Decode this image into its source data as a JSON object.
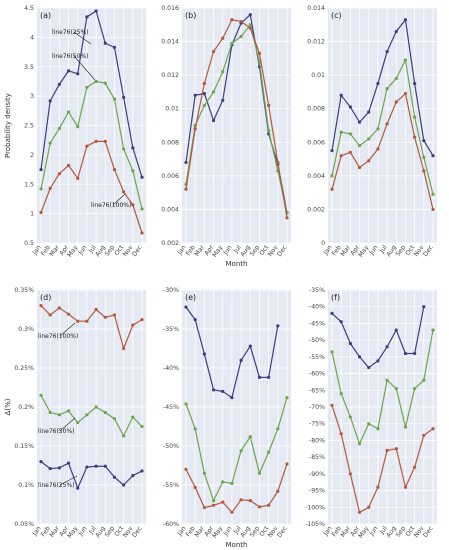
{
  "colors": {
    "line76(25%)": "#3d3f7e",
    "line76(50%)": "#6fa64a",
    "line76(100%)": "#b6583a"
  },
  "chart_data": [
    {
      "type": "line",
      "panel": "(a)",
      "categories": [
        "Jan",
        "Feb",
        "Mar",
        "Apr",
        "May",
        "Jun",
        "Jul",
        "Aug",
        "Sep",
        "Oct",
        "Nov",
        "Dec"
      ],
      "ylabel": "Probability density",
      "xlabel": "",
      "ylim": [
        0.5,
        4.5
      ],
      "yticks": [
        "0.5",
        "1",
        "1.5",
        "2",
        "2.5",
        "3",
        "3.5",
        "4",
        "4.5"
      ],
      "tick_values": [
        0.5,
        1,
        1.5,
        2,
        2.5,
        3,
        3.5,
        4,
        4.5
      ],
      "series": [
        {
          "name": "line76(25%)",
          "values": [
            1.75,
            2.92,
            3.2,
            3.43,
            3.38,
            4.35,
            4.45,
            3.9,
            3.83,
            2.98,
            2.12,
            1.62
          ]
        },
        {
          "name": "line76(50%)",
          "values": [
            1.42,
            2.2,
            2.45,
            2.73,
            2.48,
            3.15,
            3.25,
            3.22,
            2.95,
            2.1,
            1.73,
            1.08
          ]
        },
        {
          "name": "line76(100%)",
          "values": [
            1.02,
            1.43,
            1.68,
            1.82,
            1.6,
            2.15,
            2.23,
            2.23,
            1.75,
            1.37,
            1.15,
            0.67
          ]
        }
      ],
      "annotations": [
        {
          "text": "line76(25%)",
          "series": "line76(25%)"
        },
        {
          "text": "line76(50%)",
          "series": "line76(50%)"
        },
        {
          "text": "line76(100%)",
          "series": "line76(100%)"
        }
      ]
    },
    {
      "type": "line",
      "panel": "(b)",
      "categories": [
        "Jan",
        "Feb",
        "Mar",
        "Apr",
        "May",
        "Jun",
        "Jul",
        "Aug",
        "Sep",
        "Oct",
        "Nov",
        "Dec"
      ],
      "xlabel": "Month",
      "ylabel": "",
      "ylim": [
        0.002,
        0.016
      ],
      "yticks": [
        "0.002",
        "0.004",
        "0.006",
        "0.008",
        "0.01",
        "0.012",
        "0.014",
        "0.016"
      ],
      "tick_values": [
        0.002,
        0.004,
        0.006,
        0.008,
        0.01,
        0.012,
        0.014,
        0.016
      ],
      "series": [
        {
          "name": "line76(25%)",
          "values": [
            0.0068,
            0.0108,
            0.0109,
            0.0093,
            0.0105,
            0.0138,
            0.0151,
            0.0156,
            0.0125,
            0.0085,
            0.0067,
            0.0038
          ]
        },
        {
          "name": "line76(50%)",
          "values": [
            0.0055,
            0.009,
            0.0102,
            0.011,
            0.0122,
            0.0139,
            0.0143,
            0.015,
            0.0128,
            0.0087,
            0.0063,
            0.0038
          ]
        },
        {
          "name": "line76(100%)",
          "values": [
            0.0052,
            0.0088,
            0.0115,
            0.0134,
            0.0142,
            0.0153,
            0.0152,
            0.0148,
            0.0133,
            0.0102,
            0.0068,
            0.0035
          ]
        }
      ]
    },
    {
      "type": "line",
      "panel": "(c)",
      "categories": [
        "Jan",
        "Feb",
        "Mar",
        "Apr",
        "May",
        "Jun",
        "Jul",
        "Aug",
        "Sep",
        "Oct",
        "Nov",
        "Dec"
      ],
      "xlabel": "",
      "ylabel": "",
      "ylim": [
        0.0,
        0.014
      ],
      "yticks": [
        "0",
        "0.002",
        "0.004",
        "0.006",
        "0.008",
        "0.01",
        "0.012",
        "0.014"
      ],
      "tick_values": [
        0,
        0.002,
        0.004,
        0.006,
        0.008,
        0.01,
        0.012,
        0.014
      ],
      "series": [
        {
          "name": "line76(25%)",
          "values": [
            0.0055,
            0.0088,
            0.0081,
            0.0072,
            0.0078,
            0.0095,
            0.0114,
            0.0126,
            0.0133,
            0.0095,
            0.0061,
            0.0052
          ]
        },
        {
          "name": "line76(50%)",
          "values": [
            0.004,
            0.0066,
            0.0065,
            0.0058,
            0.0062,
            0.0068,
            0.0092,
            0.0098,
            0.0109,
            0.0075,
            0.0051,
            0.0029
          ]
        },
        {
          "name": "line76(100%)",
          "values": [
            0.0032,
            0.0052,
            0.0054,
            0.0045,
            0.0049,
            0.0056,
            0.0071,
            0.0084,
            0.0089,
            0.0063,
            0.0043,
            0.002
          ]
        }
      ]
    },
    {
      "type": "line",
      "panel": "(d)",
      "categories": [
        "Jan",
        "Feb",
        "Mar",
        "Apr",
        "May",
        "Jun",
        "Jul",
        "Aug",
        "Sep",
        "Oct",
        "Nov",
        "Dec"
      ],
      "ylabel": "Δ(%)",
      "xlabel": "",
      "ylim": [
        0.05,
        0.35
      ],
      "yticks": [
        "0.05%",
        "0.1%",
        "0.15%",
        "0.2%",
        "0.25%",
        "0.3%",
        "0.35%"
      ],
      "tick_values": [
        0.05,
        0.1,
        0.15,
        0.2,
        0.25,
        0.3,
        0.35
      ],
      "series": [
        {
          "name": "line76(25%)",
          "values": [
            0.13,
            0.121,
            0.122,
            0.128,
            0.096,
            0.123,
            0.124,
            0.124,
            0.11,
            0.1,
            0.112,
            0.118
          ]
        },
        {
          "name": "line76(50%)",
          "values": [
            0.215,
            0.193,
            0.19,
            0.195,
            0.18,
            0.19,
            0.2,
            0.193,
            0.185,
            0.163,
            0.187,
            0.175
          ]
        },
        {
          "name": "line76(100%)",
          "values": [
            0.33,
            0.318,
            0.327,
            0.319,
            0.31,
            0.31,
            0.325,
            0.315,
            0.318,
            0.275,
            0.305,
            0.312
          ]
        }
      ],
      "annotations": [
        {
          "text": "line76(100%)",
          "series": "line76(100%)"
        },
        {
          "text": "line76(50%)",
          "series": "line76(50%)"
        },
        {
          "text": "line76(25%)",
          "series": "line76(25%)"
        }
      ]
    },
    {
      "type": "line",
      "panel": "(e)",
      "categories": [
        "Jan",
        "Feb",
        "Mar",
        "Apr",
        "May",
        "Jun",
        "Jul",
        "Aug",
        "Sep",
        "Oct",
        "Nov",
        "Dec"
      ],
      "xlabel": "Month",
      "ylabel": "",
      "ylim": [
        -60,
        -30
      ],
      "yticks": [
        "-60%",
        "-55%",
        "-50%",
        "-45%",
        "-40%",
        "-35%",
        "-30%"
      ],
      "tick_values": [
        -60,
        -55,
        -50,
        -45,
        -40,
        -35,
        -30
      ],
      "series": [
        {
          "name": "line76(25%)",
          "values": [
            -32.2,
            -33.8,
            -38.2,
            -42.8,
            -43.0,
            -43.8,
            -39.0,
            -37.2,
            -41.2,
            -41.2,
            -34.6,
            null
          ]
        },
        {
          "name": "line76(50%)",
          "values": [
            -44.6,
            -47.8,
            -53.5,
            -57.0,
            -54.6,
            -54.8,
            -50.6,
            -48.8,
            -53.5,
            -50.8,
            -47.8,
            -43.8
          ]
        },
        {
          "name": "line76(100%)",
          "values": [
            -53.0,
            -55.3,
            -57.9,
            -57.6,
            -57.2,
            -58.5,
            -56.9,
            -57.0,
            -57.8,
            -57.6,
            -55.8,
            -52.3
          ]
        }
      ]
    },
    {
      "type": "line",
      "panel": "(f)",
      "categories": [
        "Jan",
        "Feb",
        "Mar",
        "Apr",
        "May",
        "Jun",
        "Jul",
        "Aug",
        "Sep",
        "Oct",
        "Nov",
        "Dec"
      ],
      "xlabel": "",
      "ylabel": "",
      "ylim": [
        -105,
        -35
      ],
      "yticks": [
        "-105%",
        "-100%",
        "-95%",
        "-90%",
        "-85%",
        "-80%",
        "-75%",
        "-70%",
        "-65%",
        "-60%",
        "-55%",
        "-50%",
        "-45%",
        "-40%",
        "-35%"
      ],
      "tick_values": [
        -105,
        -100,
        -95,
        -90,
        -85,
        -80,
        -75,
        -70,
        -65,
        -60,
        -55,
        -50,
        -45,
        -40,
        -35
      ],
      "series": [
        {
          "name": "line76(25%)",
          "values": [
            -42.0,
            -44.5,
            -51.0,
            -55.0,
            -58.2,
            -56.2,
            -52.0,
            -47.0,
            -54.0,
            -54.0,
            -40.0,
            null
          ]
        },
        {
          "name": "line76(50%)",
          "values": [
            -53.5,
            -66.0,
            -73.0,
            -81.0,
            -75.0,
            -76.5,
            -62.0,
            -64.5,
            -76.0,
            -64.5,
            -62.0,
            -47.0
          ]
        },
        {
          "name": "line76(100%)",
          "values": [
            -69.5,
            -78.0,
            -90.0,
            -101.5,
            -100.0,
            -94.0,
            -83.0,
            -82.5,
            -94.0,
            -88.0,
            -78.5,
            -76.5
          ]
        }
      ]
    }
  ]
}
